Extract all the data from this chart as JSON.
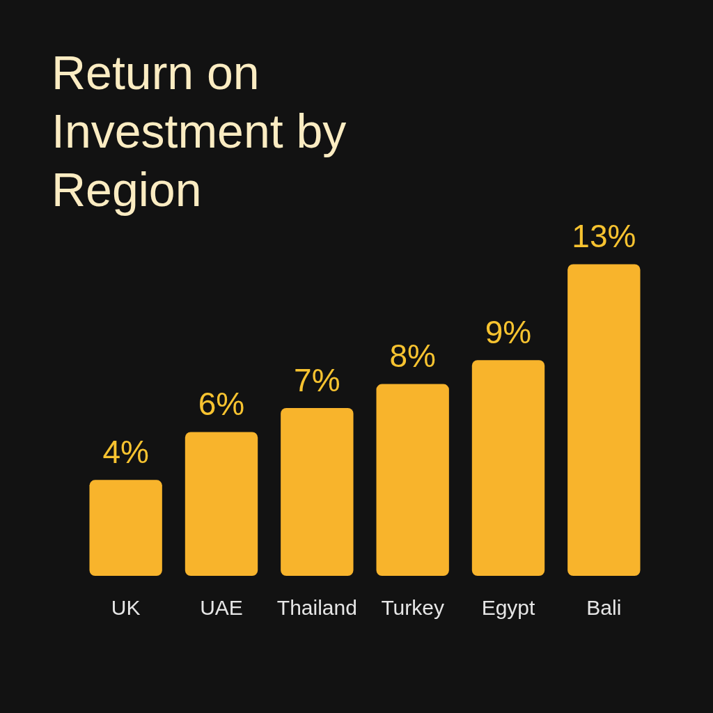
{
  "chart_data": {
    "type": "bar",
    "title": "Return on Investment by Region",
    "categories": [
      "UK",
      "UAE",
      "Thailand",
      "Turkey",
      "Egypt",
      "Bali"
    ],
    "values": [
      4,
      6,
      7,
      8,
      9,
      13
    ],
    "value_labels": [
      "4%",
      "6%",
      "7%",
      "8%",
      "9%",
      "13%"
    ],
    "color": "#f8b42c"
  }
}
